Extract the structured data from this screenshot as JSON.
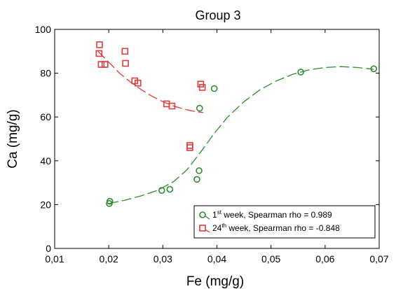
{
  "chart_data": {
    "type": "scatter",
    "title": "Group 3",
    "xlabel": "Fe (mg/g)",
    "ylabel": "Ca (mg/g)",
    "xlim": [
      0.01,
      0.07
    ],
    "ylim": [
      0,
      100
    ],
    "x_ticks": [
      "0,01",
      "0,02",
      "0,03",
      "0,04",
      "0,05",
      "0,06",
      "0,07"
    ],
    "y_ticks": [
      "0",
      "20",
      "40",
      "60",
      "80",
      "100"
    ],
    "grid": false,
    "legend_position": "bottom-right",
    "series": [
      {
        "name_prefix": "1",
        "name_sup": "st",
        "name_suffix": " week, Spearman rho = 0.989",
        "color": "#2e8b2e",
        "marker": "circle",
        "points": [
          [
            0.0202,
            21.5
          ],
          [
            0.0201,
            20.5
          ],
          [
            0.0298,
            26.5
          ],
          [
            0.0313,
            27.0
          ],
          [
            0.0363,
            31.5
          ],
          [
            0.0367,
            35.5
          ],
          [
            0.0368,
            64.0
          ],
          [
            0.0395,
            73.0
          ],
          [
            0.0555,
            80.5
          ],
          [
            0.069,
            82.0
          ]
        ],
        "trend": [
          [
            0.02,
            20.5
          ],
          [
            0.023,
            22.0
          ],
          [
            0.026,
            24.0
          ],
          [
            0.029,
            26.5
          ],
          [
            0.032,
            30.5
          ],
          [
            0.0345,
            36.0
          ],
          [
            0.037,
            44.0
          ],
          [
            0.0395,
            52.5
          ],
          [
            0.042,
            60.0
          ],
          [
            0.045,
            67.0
          ],
          [
            0.048,
            72.5
          ],
          [
            0.051,
            76.5
          ],
          [
            0.054,
            79.5
          ],
          [
            0.057,
            81.5
          ],
          [
            0.06,
            82.6
          ],
          [
            0.063,
            83.0
          ],
          [
            0.066,
            82.6
          ],
          [
            0.069,
            81.8
          ]
        ]
      },
      {
        "name_prefix": "24",
        "name_sup": "th",
        "name_suffix": " week, Spearman rho = -0.848",
        "color": "#e03c3c",
        "marker": "square",
        "points": [
          [
            0.0182,
            89.0
          ],
          [
            0.0183,
            93.0
          ],
          [
            0.0186,
            84.0
          ],
          [
            0.0193,
            84.0
          ],
          [
            0.023,
            90.0
          ],
          [
            0.0231,
            84.5
          ],
          [
            0.0248,
            76.5
          ],
          [
            0.0254,
            75.5
          ],
          [
            0.0307,
            66.0
          ],
          [
            0.0317,
            65.0
          ],
          [
            0.035,
            47.0
          ],
          [
            0.035,
            46.0
          ],
          [
            0.037,
            75.0
          ],
          [
            0.0373,
            73.5
          ]
        ],
        "trend": [
          [
            0.018,
            90.0
          ],
          [
            0.02,
            85.0
          ],
          [
            0.022,
            80.0
          ],
          [
            0.024,
            76.0
          ],
          [
            0.026,
            72.5
          ],
          [
            0.028,
            69.5
          ],
          [
            0.03,
            67.0
          ],
          [
            0.032,
            65.0
          ],
          [
            0.034,
            63.5
          ],
          [
            0.036,
            62.5
          ],
          [
            0.0375,
            62.0
          ]
        ]
      }
    ]
  }
}
